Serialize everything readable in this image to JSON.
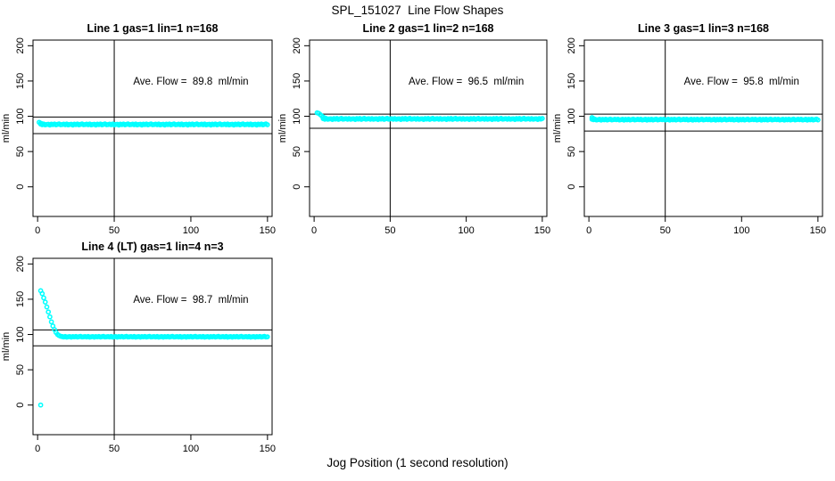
{
  "main_title": "SPL_151027  Line Flow Shapes",
  "xlabel": "Jog Position (1 second resolution)",
  "colors": {
    "data": "#00FFFF",
    "axis": "#000000",
    "background": "#FFFFFF"
  },
  "chart_data": [
    {
      "type": "scatter",
      "title": "Line 1 gas=1 lin=1 n=168",
      "annotation": "Ave. Flow =  89.8  ml/min",
      "ave_flow_ml_min": 89.8,
      "ylabel": "ml/min",
      "x_ticks": [
        0,
        50,
        100,
        150
      ],
      "y_ticks": [
        0,
        50,
        100,
        150,
        200
      ],
      "xlim": [
        -3,
        153
      ],
      "ylim": [
        -42,
        208
      ],
      "vline_x": 50,
      "ref_lines": {
        "upper": 99,
        "lower": 75.5
      },
      "lead_points": [
        [
          1,
          91.5
        ],
        [
          2,
          90.2
        ],
        [
          3,
          89.3
        ]
      ],
      "band": {
        "x_from": 2,
        "x_to": 150,
        "x_step": 1,
        "y_level": 88.4,
        "jitter": [
          0.5,
          -0.3,
          0.7,
          -0.6,
          0,
          0.3,
          -0.8,
          0.4,
          -0.2,
          0.6,
          -0.5,
          0.2,
          0.8,
          -0.4,
          -0.1
        ]
      },
      "outliers": []
    },
    {
      "type": "scatter",
      "title": "Line 2 gas=1 lin=2 n=168",
      "annotation": "Ave. Flow =  96.5  ml/min",
      "ave_flow_ml_min": 96.5,
      "ylabel": "ml/min",
      "x_ticks": [
        0,
        50,
        100,
        150
      ],
      "y_ticks": [
        0,
        50,
        100,
        150,
        200
      ],
      "xlim": [
        -3,
        153
      ],
      "ylim": [
        -42,
        208
      ],
      "vline_x": 50,
      "ref_lines": {
        "upper": 103,
        "lower": 83
      },
      "lead_points": [
        [
          2,
          105
        ],
        [
          3,
          104.2
        ],
        [
          4,
          102.5
        ],
        [
          5,
          100.5
        ],
        [
          6,
          98.8
        ],
        [
          7,
          97.5
        ],
        [
          8,
          96.8
        ]
      ],
      "band": {
        "x_from": 6,
        "x_to": 150,
        "x_step": 1,
        "y_level": 96.2,
        "jitter": [
          0.4,
          -0.4,
          0.6,
          -0.5,
          0.1,
          0.3,
          -0.7,
          0.5,
          -0.2,
          0.7,
          -0.6,
          0.2,
          0.8,
          -0.3,
          0
        ]
      },
      "outliers": []
    },
    {
      "type": "scatter",
      "title": "Line 3 gas=1 lin=3 n=168",
      "annotation": "Ave. Flow =  95.8  ml/min",
      "ave_flow_ml_min": 95.8,
      "ylabel": "ml/min",
      "x_ticks": [
        0,
        50,
        100,
        150
      ],
      "y_ticks": [
        0,
        50,
        100,
        150,
        200
      ],
      "xlim": [
        -3,
        153
      ],
      "ylim": [
        -42,
        208
      ],
      "vline_x": 50,
      "ref_lines": {
        "upper": 103,
        "lower": 79
      },
      "lead_points": [
        [
          2,
          98.2
        ],
        [
          3,
          96.8
        ]
      ],
      "band": {
        "x_from": 2,
        "x_to": 150,
        "x_step": 1,
        "y_level": 95.3,
        "jitter": [
          0.5,
          -0.2,
          0.6,
          -0.6,
          0,
          0.4,
          -0.7,
          0.3,
          -0.3,
          0.6,
          -0.5,
          0.1,
          0.7,
          -0.4,
          -0.1
        ]
      },
      "outliers": []
    },
    {
      "type": "scatter",
      "title": "Line 4 (LT) gas=1 lin=4 n=3",
      "annotation": "Ave. Flow =  98.7  ml/min",
      "ave_flow_ml_min": 98.7,
      "ylabel": "ml/min",
      "x_ticks": [
        0,
        50,
        100,
        150
      ],
      "y_ticks": [
        0,
        50,
        100,
        150,
        200
      ],
      "xlim": [
        -3,
        153
      ],
      "ylim": [
        -42,
        208
      ],
      "vline_x": 50,
      "ref_lines": {
        "upper": 106.5,
        "lower": 84
      },
      "lead_points": [
        [
          2,
          162
        ],
        [
          3,
          158
        ],
        [
          4,
          152
        ],
        [
          5,
          146
        ],
        [
          6,
          139
        ],
        [
          7,
          132
        ],
        [
          8,
          125
        ],
        [
          9,
          118
        ],
        [
          10,
          112
        ],
        [
          11,
          107
        ],
        [
          12,
          103
        ],
        [
          13,
          100
        ],
        [
          14,
          98.5
        ],
        [
          15,
          97.5
        ],
        [
          16,
          97
        ]
      ],
      "band": {
        "x_from": 16,
        "x_to": 150,
        "x_step": 1,
        "y_level": 96.8,
        "jitter": [
          0.4,
          -0.3,
          0.5,
          -0.5,
          0,
          0.3,
          -0.6,
          0.4,
          -0.2,
          0.5,
          -0.4,
          0.1,
          0.6,
          -0.3,
          0
        ]
      },
      "outliers": [
        [
          2,
          0
        ]
      ]
    }
  ]
}
